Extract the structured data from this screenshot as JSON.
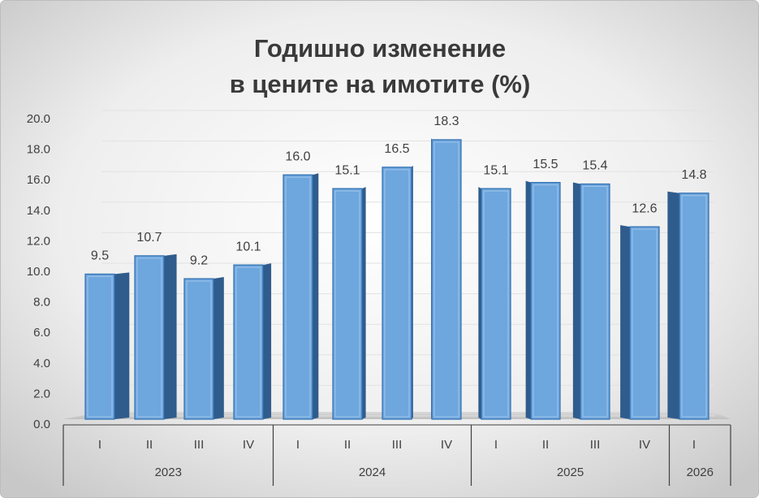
{
  "chart_data": {
    "type": "bar3d",
    "title": [
      "Годишно изменение",
      "в цените на имотите (%)"
    ],
    "groups": [
      {
        "name": "2023",
        "categories": [
          "I",
          "II",
          "III",
          "IV"
        ]
      },
      {
        "name": "2024",
        "categories": [
          "I",
          "II",
          "III",
          "IV"
        ]
      },
      {
        "name": "2025",
        "categories": [
          "I",
          "II",
          "III",
          "IV"
        ]
      },
      {
        "name": "2026",
        "categories": [
          "I"
        ]
      }
    ],
    "values": [
      9.5,
      10.7,
      9.2,
      10.1,
      16.0,
      15.1,
      16.5,
      18.3,
      15.1,
      15.5,
      15.4,
      12.6,
      14.8
    ],
    "value_labels": [
      "9.5",
      "10.7",
      "9.2",
      "10.1",
      "16.0",
      "15.1",
      "16.5",
      "18.3",
      "15.1",
      "15.5",
      "15.4",
      "12.6",
      "14.8"
    ],
    "color": "#6ea6de",
    "side_color": "#2f5c8c",
    "ylim": [
      0,
      20
    ],
    "yticks": [
      {
        "value": 0,
        "label": "0.0"
      },
      {
        "value": 2,
        "label": "2.0"
      },
      {
        "value": 4,
        "label": "4.0"
      },
      {
        "value": 6,
        "label": "6.0"
      },
      {
        "value": 8,
        "label": "8.0"
      },
      {
        "value": 10,
        "label": "10.0"
      },
      {
        "value": 12,
        "label": "12.0"
      },
      {
        "value": 14,
        "label": "14.0"
      },
      {
        "value": 16,
        "label": "16.0"
      },
      {
        "value": 18,
        "label": "18.0"
      },
      {
        "value": 20,
        "label": "20.0"
      }
    ],
    "grid": true
  }
}
